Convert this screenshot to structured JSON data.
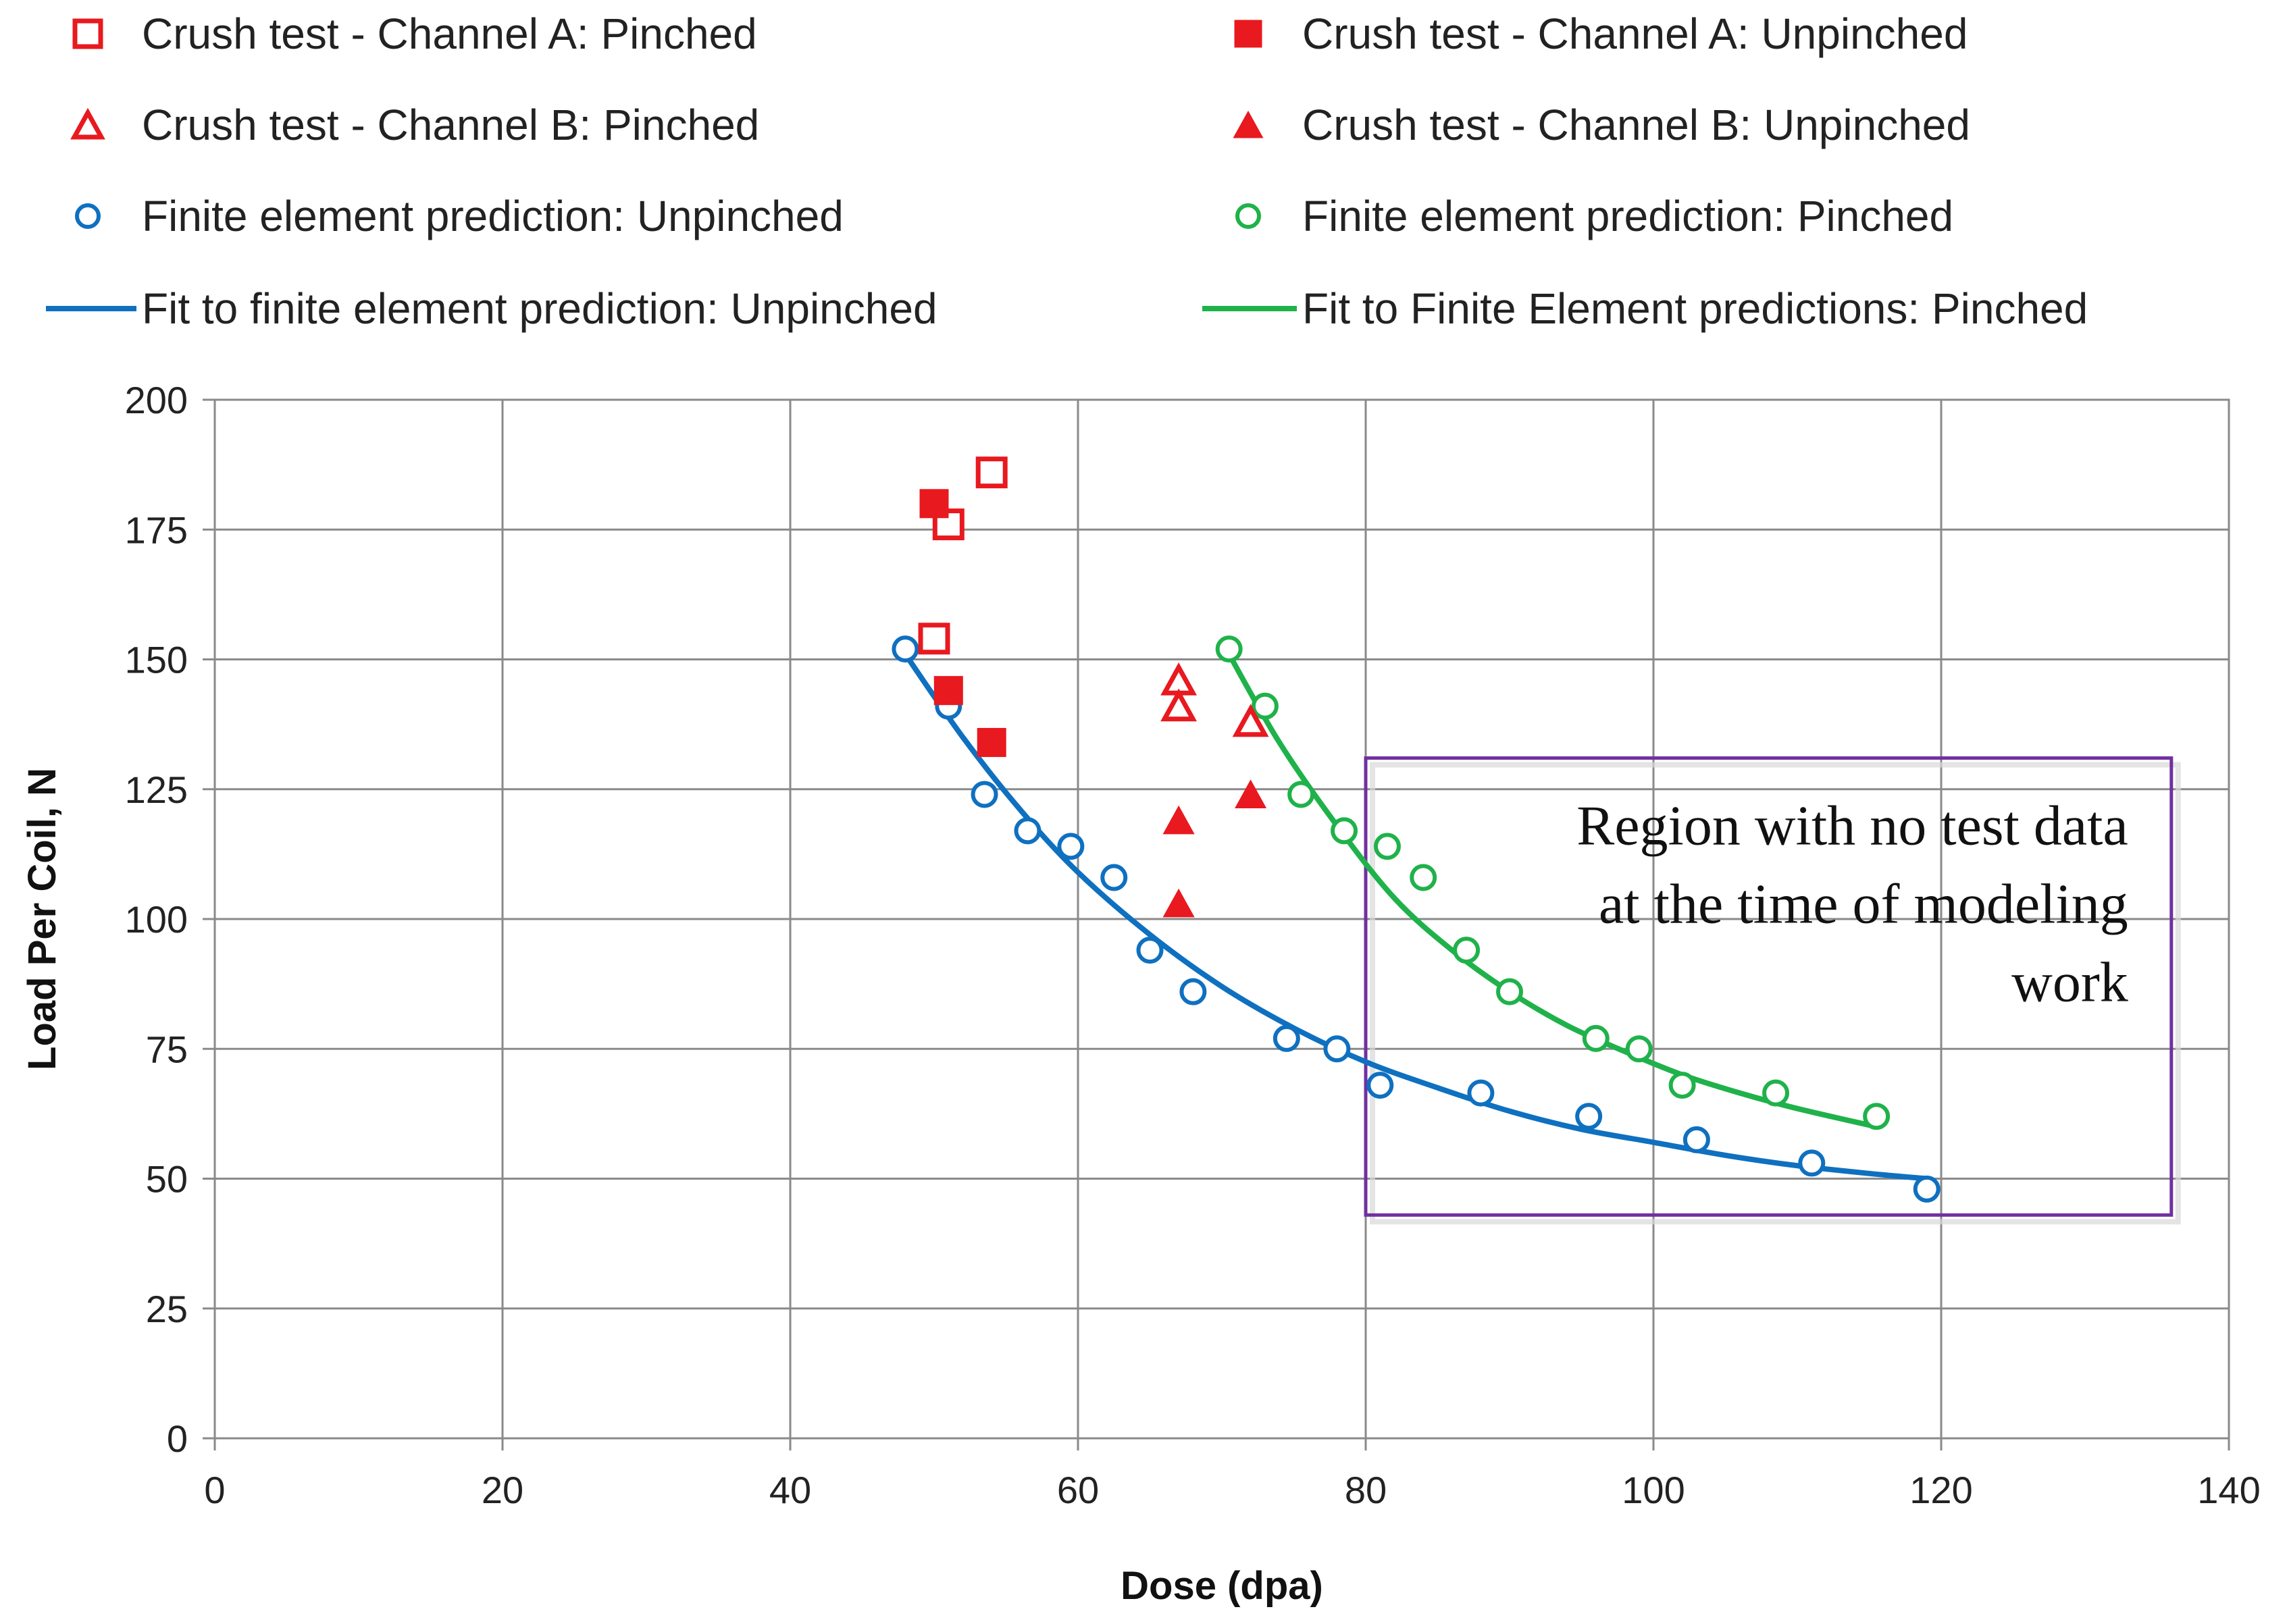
{
  "chart_data": {
    "type": "scatter",
    "xlabel": "Dose (dpa)",
    "ylabel": "Load Per Coil, N",
    "xlim": [
      0,
      140
    ],
    "ylim": [
      0,
      200
    ],
    "xticks": [
      0,
      20,
      40,
      60,
      80,
      100,
      120,
      140
    ],
    "yticks": [
      0,
      25,
      50,
      75,
      100,
      125,
      150,
      175,
      200
    ],
    "grid": true,
    "legend_position": "top",
    "series": [
      {
        "name": "Crush test - Channel A: Pinched",
        "marker": "square-open",
        "color": "#e8191f",
        "points": [
          [
            50,
            154
          ],
          [
            51,
            176
          ],
          [
            54,
            186
          ]
        ]
      },
      {
        "name": "Crush test - Channel A: Unpinched",
        "marker": "square-filled",
        "color": "#e8191f",
        "points": [
          [
            50,
            180
          ],
          [
            51,
            144
          ],
          [
            54,
            134
          ]
        ]
      },
      {
        "name": "Crush test - Channel B: Pinched",
        "marker": "triangle-open",
        "color": "#e8191f",
        "points": [
          [
            67,
            146
          ],
          [
            67,
            141
          ],
          [
            72,
            138
          ]
        ]
      },
      {
        "name": "Crush test - Channel B: Unpinched",
        "marker": "triangle-filled",
        "color": "#e8191f",
        "points": [
          [
            67,
            119
          ],
          [
            67,
            103
          ],
          [
            72,
            124
          ]
        ]
      },
      {
        "name": "Finite element prediction: Unpinched",
        "marker": "circle-open",
        "color": "#0f70c0",
        "points": [
          [
            48,
            152
          ],
          [
            51,
            141
          ],
          [
            53.5,
            124
          ],
          [
            56.5,
            117
          ],
          [
            59.5,
            114
          ],
          [
            62.5,
            108
          ],
          [
            65,
            94
          ],
          [
            68,
            86
          ],
          [
            74.5,
            77
          ],
          [
            78,
            75
          ],
          [
            81,
            68
          ],
          [
            88,
            66.5
          ],
          [
            95.5,
            62
          ],
          [
            103,
            57.5
          ],
          [
            111,
            53
          ],
          [
            119,
            48
          ]
        ]
      },
      {
        "name": "Finite element prediction: Pinched",
        "marker": "circle-open",
        "color": "#1fb24a",
        "points": [
          [
            70.5,
            152
          ],
          [
            73,
            141
          ],
          [
            75.5,
            124
          ],
          [
            78.5,
            117
          ],
          [
            81.5,
            114
          ],
          [
            84,
            108
          ],
          [
            87,
            94
          ],
          [
            90,
            86
          ],
          [
            96,
            77
          ],
          [
            99,
            75
          ],
          [
            102,
            68
          ],
          [
            108.5,
            66.5
          ],
          [
            115.5,
            62
          ]
        ]
      },
      {
        "name": "Fit to finite element prediction: Unpinched",
        "marker": "line",
        "color": "#0f70c0",
        "points": [
          [
            48,
            151
          ],
          [
            52,
            135
          ],
          [
            56,
            121
          ],
          [
            60,
            109
          ],
          [
            65,
            97
          ],
          [
            70,
            87
          ],
          [
            75,
            79
          ],
          [
            80,
            72.5
          ],
          [
            85,
            67.5
          ],
          [
            90,
            63
          ],
          [
            95,
            59.5
          ],
          [
            100,
            57
          ],
          [
            105,
            54.5
          ],
          [
            110,
            52.5
          ],
          [
            115,
            51
          ],
          [
            119,
            50
          ]
        ]
      },
      {
        "name": "Fit to Finite Element predictions: Pinched",
        "marker": "line",
        "color": "#1fb24a",
        "points": [
          [
            70.5,
            151
          ],
          [
            74,
            134
          ],
          [
            78,
            118
          ],
          [
            82,
            104
          ],
          [
            86,
            94
          ],
          [
            90,
            86
          ],
          [
            94,
            79.5
          ],
          [
            98,
            74.5
          ],
          [
            102,
            70
          ],
          [
            106,
            66.5
          ],
          [
            110,
            63.5
          ],
          [
            115.5,
            60
          ]
        ]
      }
    ],
    "annotations": [
      {
        "text_lines": [
          "Region with no test data",
          "at the time of modeling",
          "work"
        ],
        "box_x": [
          80,
          136
        ],
        "box_y": [
          43,
          131
        ],
        "color": "#7030a0"
      }
    ]
  }
}
